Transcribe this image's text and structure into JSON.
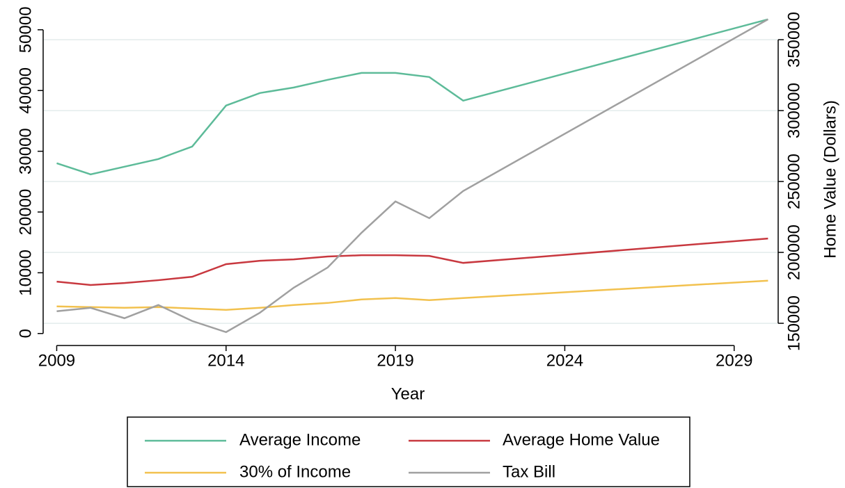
{
  "chart_data": {
    "type": "line",
    "x": [
      2009,
      2010,
      2011,
      2012,
      2013,
      2014,
      2015,
      2016,
      2017,
      2018,
      2019,
      2020,
      2021,
      2030
    ],
    "series": [
      {
        "name": "Average Income",
        "color": "#5dbb99",
        "values": [
          28030,
          26200,
          27460,
          28720,
          30780,
          37530,
          39590,
          40500,
          41760,
          42900,
          42900,
          42220,
          38330,
          51720
        ]
      },
      {
        "name": "Average Home Value",
        "color": "#c8383f",
        "axis": "y2",
        "values": [
          179400,
          177000,
          178400,
          180400,
          182800,
          191700,
          194100,
          195100,
          197100,
          198000,
          198000,
          197500,
          192600,
          209800
        ]
      },
      {
        "name": "30% of Income",
        "color": "#f2c14e",
        "values": [
          4460,
          4350,
          4230,
          4350,
          4120,
          3890,
          4230,
          4690,
          5030,
          5610,
          5840,
          5490,
          5840,
          8700
        ]
      },
      {
        "name": "Tax Bill",
        "color": "#a0a0a0",
        "values": [
          3660,
          4230,
          2520,
          4690,
          2060,
          230,
          3430,
          7550,
          10870,
          16590,
          21740,
          18990,
          23460,
          51720
        ]
      }
    ],
    "x_label": "Year",
    "y2_label": "Home Value (Dollars)",
    "xlim": [
      2008.6,
      2030.3
    ],
    "xticks": [
      2009,
      2014,
      2019,
      2024,
      2029
    ],
    "ylim": [
      -1400,
      54900
    ],
    "yticks": [
      0,
      10000,
      20000,
      30000,
      40000,
      50000
    ],
    "y2lim": [
      136800,
      378000
    ],
    "y2ticks": [
      150000,
      200000,
      250000,
      300000,
      350000
    ],
    "grid": true
  }
}
